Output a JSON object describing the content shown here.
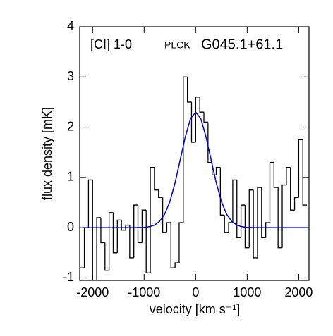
{
  "chart_data": [
    {
      "type": "histogram",
      "annotations": [
        "[CI] 1-0",
        "PLCK",
        "G045.1+61.1"
      ],
      "xlabel": "velocity [km s⁻¹]",
      "ylabel": "flux density [mK]",
      "color": "#000000",
      "xlim": [
        -2250,
        2200
      ],
      "xticks": [
        -2000,
        -1000,
        0,
        1000,
        2000
      ],
      "ylim": [
        -1.05,
        4
      ],
      "yticks": [
        -1,
        0,
        1,
        2,
        3,
        4
      ],
      "bins": [
        -2240,
        -2160,
        -2080,
        -2000,
        -1920,
        -1840,
        -1760,
        -1680,
        -1600,
        -1520,
        -1440,
        -1360,
        -1280,
        -1200,
        -1120,
        -1040,
        -960,
        -880,
        -800,
        -720,
        -640,
        -560,
        -480,
        -400,
        -320,
        -240,
        -160,
        -80,
        0,
        80,
        160,
        240,
        320,
        400,
        480,
        560,
        640,
        720,
        800,
        880,
        960,
        1040,
        1120,
        1200,
        1280,
        1360,
        1440,
        1520,
        1600,
        1680,
        1760,
        1840,
        1920,
        2000,
        2080,
        2160
      ],
      "counts": [
        -0.8,
        0.0,
        0.95,
        -1.1,
        0.2,
        -0.3,
        -0.85,
        0.3,
        -0.5,
        0.15,
        -0.05,
        0.05,
        -0.6,
        0.45,
        -0.3,
        0.35,
        -0.9,
        1.2,
        0.75,
        0.6,
        -0.1,
        0.1,
        -0.8,
        -0.7,
        0.1,
        3.0,
        2.5,
        1.7,
        2.6,
        2.3,
        2.1,
        1.3,
        1.05,
        1.2,
        0.25,
        -0.1,
        0.1,
        0.95,
        -0.2,
        0.45,
        -0.4,
        0.75,
        -0.6,
        0.8,
        -0.2,
        0.1,
        1.3,
        0.8,
        -0.4,
        0.85,
        1.2,
        0.35,
        0.6,
        1.75,
        0.45
      ]
    },
    {
      "type": "line",
      "color": "#0000cc",
      "x": [
        -2200,
        -1200,
        -1000,
        -900,
        -800,
        -700,
        -600,
        -500,
        -400,
        -300,
        -200,
        -100,
        0,
        100,
        200,
        300,
        400,
        500,
        600,
        700,
        800,
        900,
        1000,
        1200,
        2200
      ],
      "values": [
        0,
        0,
        0.006,
        0.019,
        0.05,
        0.125,
        0.27,
        0.52,
        0.89,
        1.35,
        1.81,
        2.17,
        2.3,
        2.17,
        1.81,
        1.35,
        0.89,
        0.52,
        0.27,
        0.125,
        0.05,
        0.019,
        0.006,
        0,
        0
      ]
    }
  ]
}
